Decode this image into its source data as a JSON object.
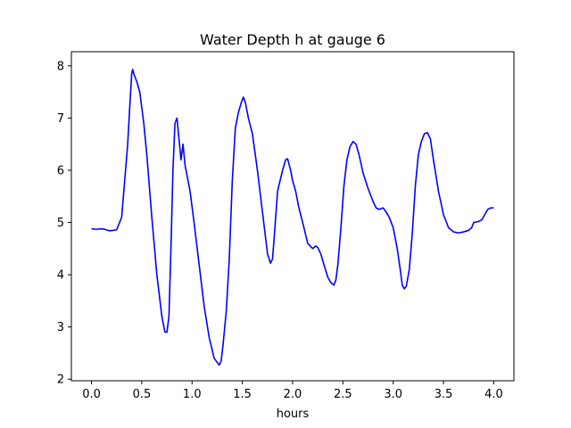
{
  "chart_data": {
    "type": "line",
    "title": "Water Depth h at gauge 6",
    "xlabel": "hours",
    "ylabel": "",
    "xlim": [
      -0.2,
      4.2
    ],
    "ylim": [
      1.97,
      8.27
    ],
    "xticks": [
      0.0,
      0.5,
      1.0,
      1.5,
      2.0,
      2.5,
      3.0,
      3.5,
      4.0
    ],
    "xtick_labels": [
      "0.0",
      "0.5",
      "1.0",
      "1.5",
      "2.0",
      "2.5",
      "3.0",
      "3.5",
      "4.0"
    ],
    "yticks": [
      2,
      3,
      4,
      5,
      6,
      7,
      8
    ],
    "ytick_labels": [
      "2",
      "3",
      "4",
      "5",
      "6",
      "7",
      "8"
    ],
    "grid": false,
    "legend": null,
    "series": [
      {
        "color": "#0000ff",
        "x": [
          0.0,
          0.05,
          0.1,
          0.13,
          0.18,
          0.25,
          0.3,
          0.33,
          0.36,
          0.38,
          0.4,
          0.41,
          0.42,
          0.45,
          0.48,
          0.5,
          0.52,
          0.55,
          0.6,
          0.65,
          0.7,
          0.73,
          0.75,
          0.77,
          0.79,
          0.81,
          0.83,
          0.85,
          0.87,
          0.89,
          0.91,
          0.93,
          0.95,
          0.98,
          1.02,
          1.07,
          1.12,
          1.17,
          1.22,
          1.27,
          1.29,
          1.31,
          1.34,
          1.37,
          1.4,
          1.43,
          1.46,
          1.49,
          1.51,
          1.53,
          1.56,
          1.6,
          1.65,
          1.7,
          1.75,
          1.78,
          1.8,
          1.82,
          1.85,
          1.9,
          1.93,
          1.95,
          1.98,
          2.0,
          2.03,
          2.06,
          2.1,
          2.15,
          2.2,
          2.23,
          2.25,
          2.28,
          2.31,
          2.35,
          2.38,
          2.41,
          2.43,
          2.45,
          2.48,
          2.51,
          2.54,
          2.57,
          2.6,
          2.63,
          2.66,
          2.7,
          2.75,
          2.8,
          2.83,
          2.86,
          2.9,
          2.93,
          2.96,
          3.0,
          3.04,
          3.07,
          3.09,
          3.11,
          3.13,
          3.16,
          3.19,
          3.22,
          3.25,
          3.28,
          3.31,
          3.34,
          3.37,
          3.4,
          3.45,
          3.5,
          3.55,
          3.6,
          3.65,
          3.7,
          3.75,
          3.78,
          3.8,
          3.85,
          3.88,
          3.91,
          3.94,
          3.97,
          4.0
        ],
        "y": [
          4.88,
          4.87,
          4.88,
          4.87,
          4.84,
          4.86,
          5.1,
          5.8,
          6.5,
          7.2,
          7.85,
          7.93,
          7.85,
          7.7,
          7.5,
          7.2,
          6.9,
          6.3,
          5.1,
          4.0,
          3.2,
          2.9,
          2.9,
          3.2,
          4.5,
          6.0,
          6.9,
          7.0,
          6.6,
          6.2,
          6.5,
          6.1,
          5.9,
          5.6,
          5.0,
          4.2,
          3.4,
          2.8,
          2.4,
          2.27,
          2.35,
          2.7,
          3.3,
          4.3,
          5.8,
          6.8,
          7.1,
          7.3,
          7.4,
          7.3,
          7.0,
          6.7,
          6.0,
          5.2,
          4.4,
          4.22,
          4.3,
          4.8,
          5.6,
          6.0,
          6.2,
          6.22,
          6.0,
          5.8,
          5.6,
          5.3,
          5.0,
          4.6,
          4.5,
          4.55,
          4.52,
          4.4,
          4.2,
          3.95,
          3.85,
          3.8,
          3.9,
          4.2,
          4.9,
          5.7,
          6.2,
          6.45,
          6.55,
          6.5,
          6.3,
          5.95,
          5.65,
          5.4,
          5.28,
          5.25,
          5.28,
          5.2,
          5.1,
          4.9,
          4.5,
          4.1,
          3.8,
          3.73,
          3.78,
          4.1,
          4.8,
          5.7,
          6.3,
          6.55,
          6.7,
          6.72,
          6.6,
          6.2,
          5.6,
          5.15,
          4.9,
          4.82,
          4.8,
          4.82,
          4.85,
          4.9,
          5.0,
          5.02,
          5.05,
          5.15,
          5.25,
          5.28,
          5.28
        ]
      }
    ]
  }
}
